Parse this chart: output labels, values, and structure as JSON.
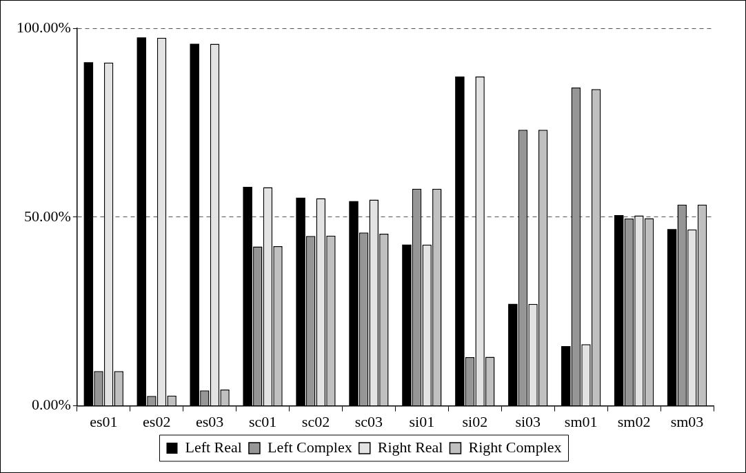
{
  "chart_data": {
    "type": "bar",
    "categories": [
      "es01",
      "es02",
      "es03",
      "sc01",
      "sc02",
      "sc03",
      "si01",
      "si02",
      "si03",
      "sm01",
      "sm02",
      "sm03"
    ],
    "series": [
      {
        "name": "Left Real",
        "color": "#000000",
        "values": [
          91.0,
          97.6,
          95.9,
          58.0,
          55.1,
          54.2,
          42.7,
          87.2,
          27.0,
          15.8,
          50.5,
          46.8
        ]
      },
      {
        "name": "Left Complex",
        "color": "#969696",
        "values": [
          9.2,
          2.6,
          4.1,
          42.2,
          45.0,
          45.9,
          57.5,
          12.9,
          73.1,
          84.3,
          49.6,
          53.3
        ]
      },
      {
        "name": "Right Real",
        "color": "#e3e3e3",
        "values": [
          90.9,
          97.5,
          95.9,
          57.9,
          55.0,
          54.6,
          42.7,
          87.2,
          27.0,
          16.3,
          50.4,
          46.7
        ]
      },
      {
        "name": "Right Complex",
        "color": "#c0c0c0",
        "values": [
          9.2,
          2.7,
          4.3,
          42.3,
          45.1,
          45.6,
          57.5,
          13.0,
          73.1,
          83.9,
          49.7,
          53.3
        ]
      }
    ],
    "ylim": [
      0,
      100
    ],
    "yticks": [
      {
        "value": 0,
        "label": "0.00%"
      },
      {
        "value": 50,
        "label": "50.00%"
      },
      {
        "value": 100,
        "label": "100.00%"
      }
    ],
    "grid": "y",
    "legend": "bottom"
  }
}
